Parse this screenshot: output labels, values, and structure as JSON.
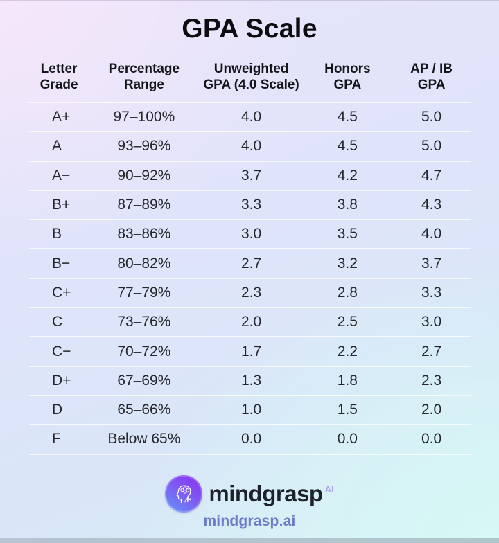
{
  "page": {
    "title": "GPA Scale"
  },
  "table": {
    "columns": [
      {
        "id": "letter-grade",
        "line1": "Letter",
        "line2": "Grade"
      },
      {
        "id": "percentage-range",
        "line1": "Percentage",
        "line2": "Range"
      },
      {
        "id": "unweighted-gpa",
        "line1": "Unweighted",
        "line2": "GPA (4.0 Scale)"
      },
      {
        "id": "honors-gpa",
        "line1": "Honors",
        "line2": "GPA"
      },
      {
        "id": "ap-ib-gpa",
        "line1": "AP / IB",
        "line2": "GPA"
      }
    ],
    "rows": [
      [
        "A+",
        "97–100%",
        "4.0",
        "4.5",
        "5.0"
      ],
      [
        "A",
        "93–96%",
        "4.0",
        "4.5",
        "5.0"
      ],
      [
        "A−",
        "90–92%",
        "3.7",
        "4.2",
        "4.7"
      ],
      [
        "B+",
        "87–89%",
        "3.3",
        "3.8",
        "4.3"
      ],
      [
        "B",
        "83–86%",
        "3.0",
        "3.5",
        "4.0"
      ],
      [
        "B−",
        "80–82%",
        "2.7",
        "3.2",
        "3.7"
      ],
      [
        "C+",
        "77–79%",
        "2.3",
        "2.8",
        "3.3"
      ],
      [
        "C",
        "73–76%",
        "2.0",
        "2.5",
        "3.0"
      ],
      [
        "C−",
        "70–72%",
        "1.7",
        "2.2",
        "2.7"
      ],
      [
        "D+",
        "67–69%",
        "1.3",
        "1.8",
        "2.3"
      ],
      [
        "D",
        "65–66%",
        "1.0",
        "1.5",
        "2.0"
      ],
      [
        "F",
        "Below 65%",
        "0.0",
        "0.0",
        "0.0"
      ]
    ]
  },
  "footer": {
    "brand": "mindgrasp",
    "brand_suffix": "AI",
    "website": "mindgrasp.ai",
    "logo_icon": "brain-head-icon"
  },
  "colors": {
    "logo_gradient_start": "#8b2cf0",
    "logo_gradient_end": "#5f9bf6",
    "brand_text": "#1d212b",
    "brand_suffix_text": "#b2a3ee",
    "website_text": "#6b7bc7",
    "title_text": "#0c0d10",
    "cell_text": "#24262c",
    "row_separator": "#ffffff"
  },
  "chart_data": {
    "type": "table",
    "title": "GPA Scale",
    "columns": [
      "Letter Grade",
      "Percentage Range",
      "Unweighted GPA (4.0 Scale)",
      "Honors GPA",
      "AP / IB GPA"
    ],
    "rows": [
      [
        "A+",
        "97–100%",
        "4.0",
        "4.5",
        "5.0"
      ],
      [
        "A",
        "93–96%",
        "4.0",
        "4.5",
        "5.0"
      ],
      [
        "A−",
        "90–92%",
        "3.7",
        "4.2",
        "4.7"
      ],
      [
        "B+",
        "87–89%",
        "3.3",
        "3.8",
        "4.3"
      ],
      [
        "B",
        "83–86%",
        "3.0",
        "3.5",
        "4.0"
      ],
      [
        "B−",
        "80–82%",
        "2.7",
        "3.2",
        "3.7"
      ],
      [
        "C+",
        "77–79%",
        "2.3",
        "2.8",
        "3.3"
      ],
      [
        "C",
        "73–76%",
        "2.0",
        "2.5",
        "3.0"
      ],
      [
        "C−",
        "70–72%",
        "1.7",
        "2.2",
        "2.7"
      ],
      [
        "D+",
        "67–69%",
        "1.3",
        "1.8",
        "2.3"
      ],
      [
        "D",
        "65–66%",
        "1.0",
        "1.5",
        "2.0"
      ],
      [
        "F",
        "Below 65%",
        "0.0",
        "0.0",
        "0.0"
      ]
    ]
  }
}
